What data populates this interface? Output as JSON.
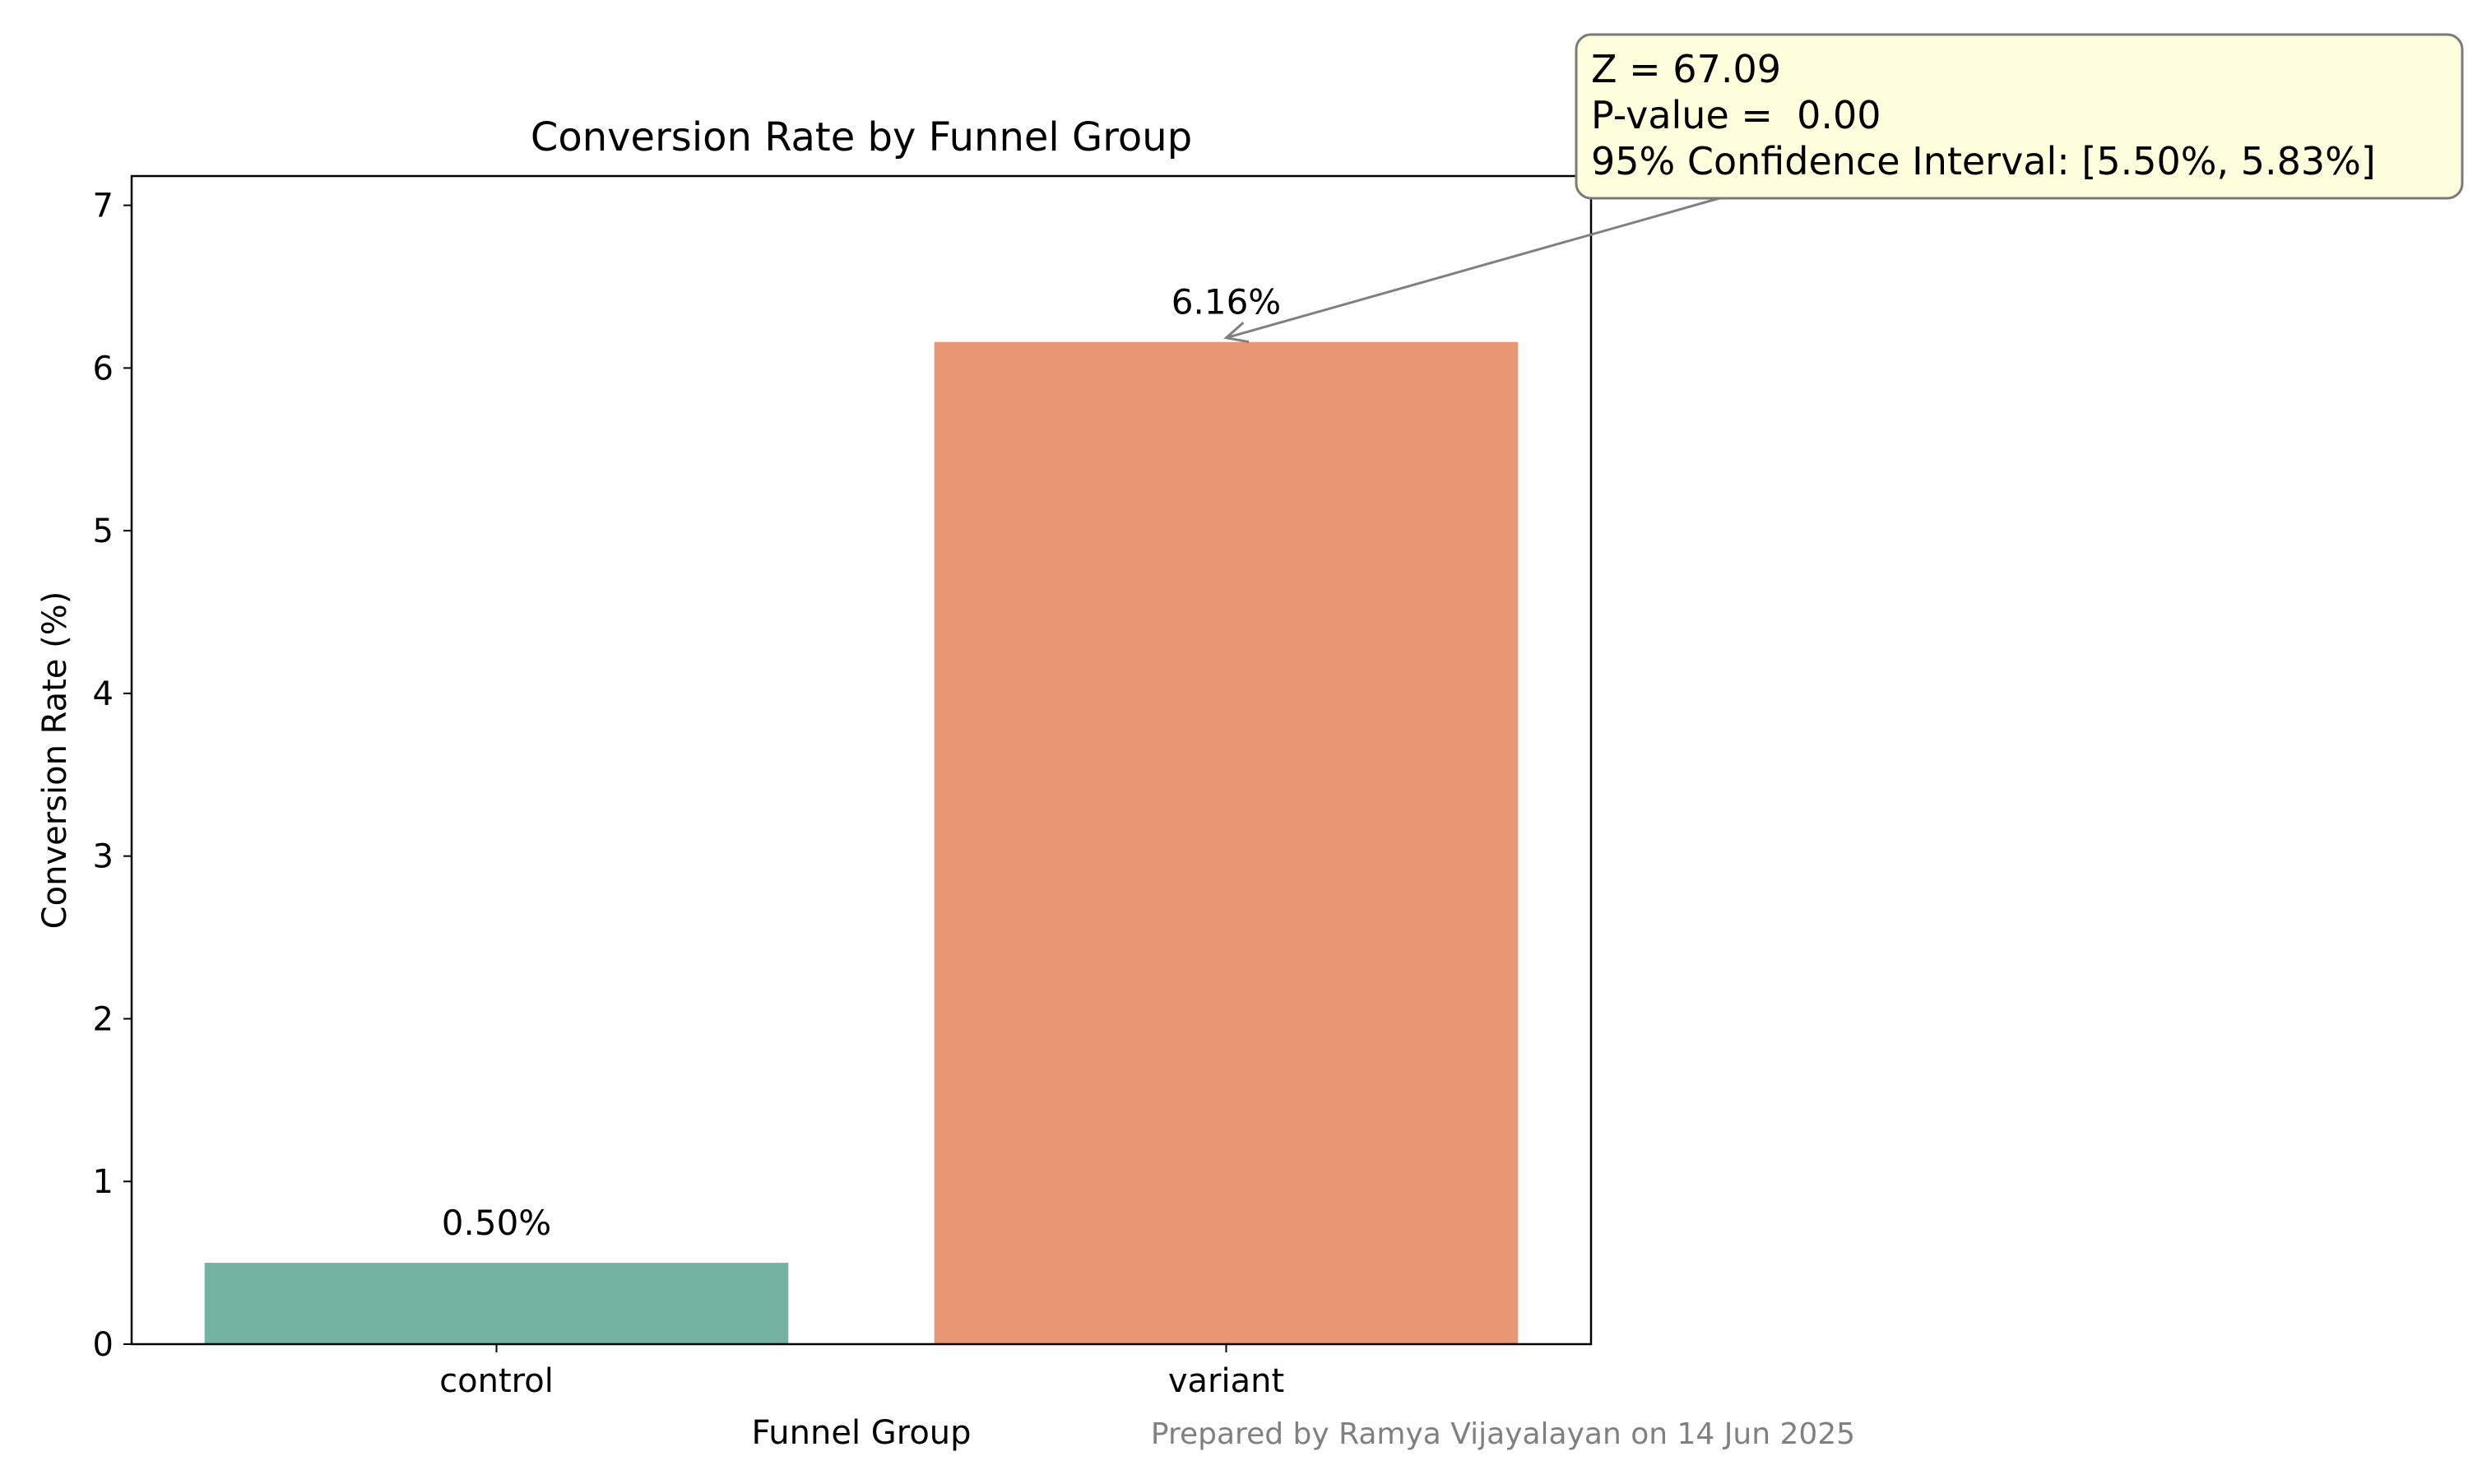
{
  "chart_data": {
    "type": "bar",
    "title": "Conversion Rate by Funnel Group",
    "xlabel": "Funnel Group",
    "ylabel": "Conversion Rate (%)",
    "categories": [
      "control",
      "variant"
    ],
    "values": [
      0.5,
      6.16
    ],
    "data_labels": [
      "0.50%",
      "6.16%"
    ],
    "colors": [
      "#73b3a0",
      "#e89674"
    ],
    "ylim": [
      0,
      7.18
    ],
    "yticks": [
      0,
      1,
      2,
      3,
      4,
      5,
      6,
      7
    ],
    "grid": false,
    "annotation": {
      "lines": [
        "Z = 67.09",
        "P-value =  0.00",
        "95% Confidence Interval: [5.50%, 5.83%]"
      ],
      "target_category": "variant",
      "box_color": "#ffffdd",
      "border_color": "#7a7a7a"
    },
    "footer": "Prepared by Ramya Vijayalayan on 14 Jun 2025"
  }
}
